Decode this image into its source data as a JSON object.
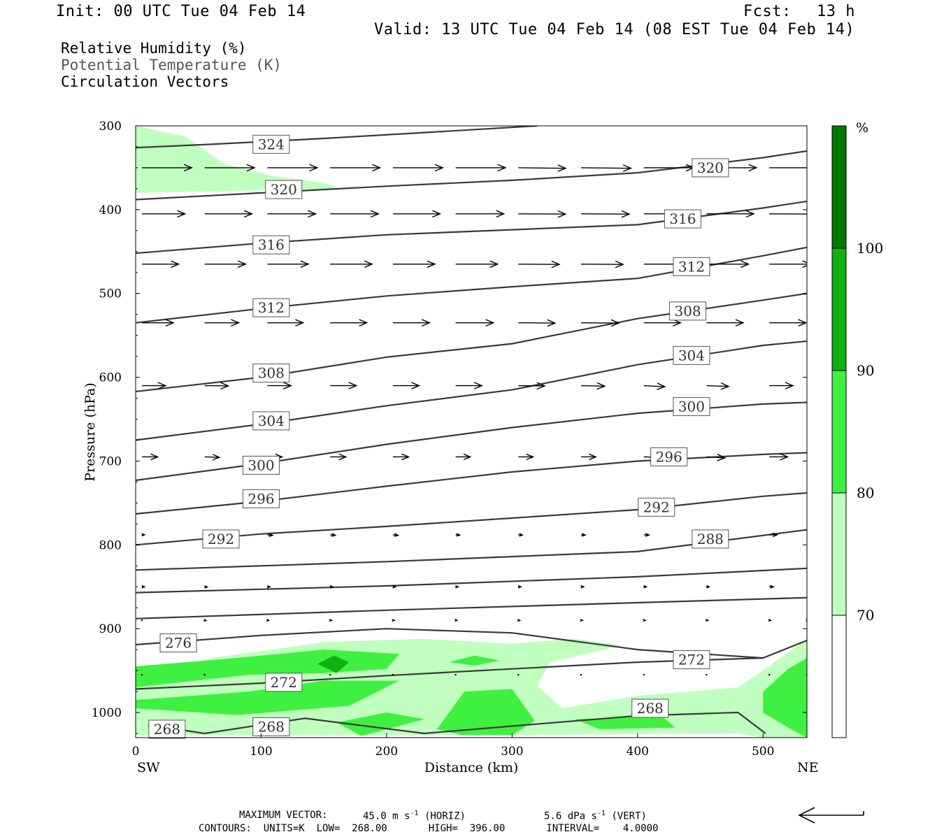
{
  "header": {
    "init": "Init: 00 UTC Tue 04 Feb 14",
    "fcst_label": "Fcst:",
    "fcst_value": "13 h",
    "valid": "Valid: 13 UTC Tue 04 Feb 14 (08 EST Tue 04 Feb 14)"
  },
  "legend": {
    "line1": "Relative Humidity (%)",
    "line2": "Potential Temperature (K)",
    "line3": "Circulation Vectors"
  },
  "footer": {
    "maxvec_label": "MAXIMUM VECTOR:",
    "horiz_value": "45.0",
    "horiz_unit": "m s",
    "horiz_exp": "-1",
    "horiz_tag": "(HORIZ)",
    "vert_value": "5.6",
    "vert_unit": "dPa s",
    "vert_exp": "-1",
    "vert_tag": "(VERT)",
    "contours": "CONTOURS:  UNITS=K  LOW=  268.00       HIGH=  396.00       INTERVAL=    4.0000"
  },
  "chart_data": {
    "type": "cross-section",
    "xlabel": "Distance (km)",
    "ylabel": "Pressure (hPa)",
    "xlim": [
      0,
      535
    ],
    "ylim": [
      300,
      1030
    ],
    "x_ticks": [
      0,
      100,
      200,
      300,
      400,
      500
    ],
    "y_ticks": [
      300,
      400,
      500,
      600,
      700,
      800,
      900,
      1000
    ],
    "x_end_labels": {
      "left": "SW",
      "right": "NE"
    },
    "colorbar": {
      "unit": "%",
      "levels": [
        70,
        80,
        90,
        100
      ],
      "colors": [
        "#ffffff",
        "#c0ffc0",
        "#40f040",
        "#10b010",
        "#007a00"
      ]
    },
    "theta_contours": [
      {
        "value": 324,
        "points": [
          [
            0,
            326
          ],
          [
            60,
            322
          ],
          [
            150,
            315
          ],
          [
            230,
            308
          ],
          [
            320,
            300
          ]
        ],
        "labels": [
          [
            108,
            322
          ]
        ]
      },
      {
        "value": 320,
        "points": [
          [
            0,
            388
          ],
          [
            100,
            380
          ],
          [
            200,
            372
          ],
          [
            300,
            365
          ],
          [
            400,
            356
          ],
          [
            500,
            338
          ],
          [
            535,
            330
          ]
        ],
        "labels": [
          [
            118,
            376
          ],
          [
            458,
            350
          ]
        ]
      },
      {
        "value": 316,
        "points": [
          [
            0,
            452
          ],
          [
            100,
            440
          ],
          [
            200,
            430
          ],
          [
            300,
            424
          ],
          [
            400,
            418
          ],
          [
            500,
            398
          ],
          [
            535,
            390
          ]
        ],
        "labels": [
          [
            108,
            442
          ],
          [
            436,
            411
          ]
        ]
      },
      {
        "value": 312,
        "points": [
          [
            0,
            535
          ],
          [
            100,
            518
          ],
          [
            200,
            503
          ],
          [
            300,
            492
          ],
          [
            400,
            482
          ],
          [
            500,
            455
          ],
          [
            535,
            445
          ]
        ],
        "labels": [
          [
            108,
            517
          ],
          [
            443,
            468
          ]
        ]
      },
      {
        "value": 308,
        "points": [
          [
            0,
            617
          ],
          [
            100,
            600
          ],
          [
            200,
            576
          ],
          [
            300,
            560
          ],
          [
            400,
            530
          ],
          [
            500,
            508
          ],
          [
            535,
            500
          ]
        ],
        "labels": [
          [
            108,
            595
          ],
          [
            440,
            521
          ]
        ]
      },
      {
        "value": 304,
        "points": [
          [
            0,
            675
          ],
          [
            100,
            656
          ],
          [
            200,
            634
          ],
          [
            300,
            615
          ],
          [
            400,
            585
          ],
          [
            500,
            562
          ],
          [
            535,
            557
          ]
        ],
        "labels": [
          [
            108,
            652
          ],
          [
            443,
            574
          ]
        ]
      },
      {
        "value": 300,
        "points": [
          [
            0,
            723
          ],
          [
            100,
            703
          ],
          [
            200,
            680
          ],
          [
            300,
            660
          ],
          [
            400,
            643
          ],
          [
            500,
            632
          ],
          [
            535,
            630
          ]
        ],
        "labels": [
          [
            100,
            705
          ],
          [
            443,
            635
          ]
        ]
      },
      {
        "value": 296,
        "points": [
          [
            0,
            763
          ],
          [
            100,
            748
          ],
          [
            200,
            730
          ],
          [
            300,
            713
          ],
          [
            400,
            700
          ],
          [
            500,
            692
          ],
          [
            535,
            690
          ]
        ],
        "labels": [
          [
            100,
            745
          ],
          [
            425,
            695
          ]
        ]
      },
      {
        "value": 292,
        "points": [
          [
            0,
            800
          ],
          [
            100,
            787
          ],
          [
            200,
            778
          ],
          [
            300,
            768
          ],
          [
            400,
            758
          ],
          [
            500,
            742
          ],
          [
            535,
            738
          ]
        ],
        "labels": [
          [
            68,
            793
          ],
          [
            415,
            755
          ]
        ]
      },
      {
        "value": 288,
        "points": [
          [
            0,
            830
          ],
          [
            200,
            820
          ],
          [
            400,
            808
          ],
          [
            535,
            782
          ]
        ],
        "labels": [
          [
            458,
            793
          ]
        ]
      },
      {
        "value": 284,
        "points": [
          [
            0,
            857
          ],
          [
            200,
            849
          ],
          [
            400,
            838
          ],
          [
            535,
            828
          ]
        ],
        "labels": []
      },
      {
        "value": 280,
        "points": [
          [
            0,
            888
          ],
          [
            200,
            878
          ],
          [
            400,
            869
          ],
          [
            535,
            863
          ]
        ],
        "labels": []
      },
      {
        "value": 276,
        "points": [
          [
            0,
            919
          ],
          [
            100,
            908
          ],
          [
            200,
            900
          ],
          [
            300,
            905
          ],
          [
            400,
            925
          ],
          [
            500,
            935
          ],
          [
            535,
            914
          ]
        ],
        "labels": [
          [
            34,
            917
          ]
        ]
      },
      {
        "value": 272,
        "points": [
          [
            0,
            972
          ],
          [
            100,
            965
          ],
          [
            200,
            956
          ],
          [
            300,
            948
          ],
          [
            400,
            940
          ],
          [
            500,
            935
          ]
        ],
        "labels": [
          [
            118,
            964
          ],
          [
            443,
            937
          ]
        ]
      },
      {
        "value": 268,
        "points": [
          [
            10,
            1015
          ],
          [
            55,
            1025
          ],
          [
            90,
            1017
          ],
          [
            135,
            1007
          ],
          [
            230,
            1025
          ],
          [
            310,
            1015
          ],
          [
            400,
            1004
          ],
          [
            480,
            1000
          ],
          [
            502,
            1025
          ]
        ],
        "labels": [
          [
            25,
            1020
          ],
          [
            108,
            1017
          ],
          [
            410,
            995
          ]
        ]
      }
    ],
    "rh_regions": [
      {
        "level": 70,
        "points": [
          [
            0,
            300
          ],
          [
            40,
            313
          ],
          [
            70,
            345
          ],
          [
            110,
            360
          ],
          [
            150,
            368
          ],
          [
            163,
            375
          ],
          [
            0,
            380
          ]
        ]
      },
      {
        "level": 70,
        "points": [
          [
            0,
            960
          ],
          [
            60,
            935
          ],
          [
            150,
            916
          ],
          [
            230,
            912
          ],
          [
            300,
            918
          ],
          [
            350,
            912
          ],
          [
            388,
            920
          ],
          [
            330,
            940
          ],
          [
            320,
            968
          ],
          [
            340,
            995
          ],
          [
            400,
            980
          ],
          [
            480,
            970
          ],
          [
            500,
            950
          ],
          [
            535,
            912
          ],
          [
            535,
            1030
          ],
          [
            500,
            1030
          ],
          [
            480,
            1025
          ],
          [
            300,
            1027
          ],
          [
            0,
            1027
          ]
        ]
      },
      {
        "level": 80,
        "points": [
          [
            0,
            945
          ],
          [
            80,
            935
          ],
          [
            150,
            925
          ],
          [
            210,
            930
          ],
          [
            200,
            948
          ],
          [
            150,
            953
          ],
          [
            90,
            955
          ],
          [
            0,
            970
          ]
        ]
      },
      {
        "level": 80,
        "points": [
          [
            0,
            985
          ],
          [
            90,
            975
          ],
          [
            150,
            962
          ],
          [
            210,
            962
          ],
          [
            170,
            992
          ],
          [
            80,
            1003
          ],
          [
            0,
            995
          ]
        ]
      },
      {
        "level": 80,
        "points": [
          [
            160,
            1012
          ],
          [
            200,
            1000
          ],
          [
            230,
            1008
          ],
          [
            180,
            1028
          ]
        ]
      },
      {
        "level": 80,
        "points": [
          [
            240,
            1020
          ],
          [
            262,
            975
          ],
          [
            300,
            972
          ],
          [
            318,
            1010
          ],
          [
            300,
            1027
          ],
          [
            260,
            1027
          ]
        ]
      },
      {
        "level": 80,
        "points": [
          [
            250,
            940
          ],
          [
            270,
            932
          ],
          [
            290,
            938
          ],
          [
            270,
            944
          ]
        ]
      },
      {
        "level": 80,
        "points": [
          [
            500,
            975
          ],
          [
            520,
            948
          ],
          [
            535,
            935
          ],
          [
            535,
            1030
          ],
          [
            520,
            1018
          ],
          [
            500,
            1000
          ]
        ]
      },
      {
        "level": 80,
        "points": [
          [
            350,
            1008
          ],
          [
            420,
            1005
          ],
          [
            430,
            1018
          ],
          [
            370,
            1020
          ]
        ]
      },
      {
        "level": 90,
        "points": [
          [
            145,
            942
          ],
          [
            158,
            932
          ],
          [
            170,
            940
          ],
          [
            160,
            953
          ]
        ]
      }
    ],
    "vectors": {
      "rows": [
        {
          "p": 350,
          "u": [
            0.95,
            0.95,
            0.95,
            0.95,
            0.95,
            0.95,
            0.9,
            0.95,
            0.95,
            0.95,
            0.95,
            0.95
          ],
          "w": [
            0,
            0,
            0,
            0,
            0,
            0,
            0.1,
            0.1,
            0,
            0,
            0,
            0
          ]
        },
        {
          "p": 405,
          "u": [
            0.82,
            0.9,
            0.92,
            0.92,
            0.9,
            0.92,
            0.9,
            0.92,
            0.9,
            0.9,
            0.88,
            0.85
          ],
          "w": [
            0,
            0,
            0,
            0,
            0,
            0,
            0.05,
            0.05,
            0,
            0,
            0.05,
            0.05
          ]
        },
        {
          "p": 465,
          "u": [
            0.7,
            0.78,
            0.78,
            0.8,
            0.8,
            0.8,
            0.78,
            0.8,
            0.8,
            0.8,
            0.78,
            0.75
          ],
          "w": [
            0,
            0,
            0,
            0,
            0,
            0,
            0.05,
            0.05,
            0,
            0,
            0,
            0
          ]
        },
        {
          "p": 535,
          "u": [
            0.6,
            0.65,
            0.68,
            0.7,
            0.7,
            0.72,
            0.7,
            0.72,
            0.7,
            0.7,
            0.7,
            0.68
          ],
          "w": [
            0,
            0,
            0,
            0,
            0,
            0,
            0.05,
            0.05,
            0,
            0,
            0,
            0
          ]
        },
        {
          "p": 610,
          "u": [
            0.45,
            0.45,
            0.45,
            0.5,
            0.5,
            0.5,
            0.5,
            0.45,
            0.4,
            0.42,
            0.45,
            0.45
          ],
          "w": [
            0,
            0.05,
            0,
            0,
            0,
            0,
            0.05,
            0.1,
            0.2,
            0.15,
            0,
            0
          ]
        },
        {
          "p": 695,
          "u": [
            0.3,
            0.28,
            0.28,
            0.3,
            0.3,
            0.28,
            0.28,
            0.28,
            0.3,
            0.35,
            0.35,
            0.3
          ],
          "w": [
            0,
            0.1,
            0,
            0,
            0,
            0,
            0,
            0,
            0.1,
            0.2,
            0,
            0
          ]
        },
        {
          "p": 788,
          "u": [
            0.05,
            0.12,
            0.1,
            0.1,
            0.1,
            0.08,
            0.08,
            0.08,
            0.1,
            0.1,
            0.15,
            0.1
          ],
          "w": [
            0,
            0.2,
            0.1,
            0.1,
            0.1,
            0.05,
            0.05,
            0.05,
            0.05,
            0.2,
            0,
            0
          ]
        },
        {
          "p": 850,
          "u": [
            0.05,
            0.05,
            0.05,
            0.05,
            0.05,
            0.05,
            0.05,
            0.05,
            0.05,
            0.05,
            0.08,
            0.05
          ],
          "w": [
            0,
            0.05,
            0,
            0,
            0,
            0,
            0,
            0,
            0,
            0,
            0,
            0
          ]
        },
        {
          "p": 890,
          "u": [
            0,
            0.03,
            0.03,
            0.03,
            0.03,
            0.03,
            0.03,
            0.03,
            0.03,
            0.03,
            0.03,
            0.03
          ],
          "w": [
            0,
            0.05,
            0,
            0,
            0,
            0,
            0,
            0,
            0,
            0,
            0,
            0
          ]
        },
        {
          "p": 955,
          "u": [
            0,
            0,
            0.02,
            0.02,
            0.02,
            0.02,
            0.02,
            0.02,
            0.02,
            0.02,
            0.02,
            0.02
          ],
          "w": [
            0,
            0,
            0,
            0,
            0,
            0,
            0,
            0,
            0,
            0,
            0,
            0
          ]
        }
      ],
      "x": [
        5,
        55,
        105,
        155,
        205,
        255,
        305,
        355,
        405,
        455,
        505,
        535
      ]
    },
    "reference_vector": {
      "direction": "left",
      "label": "45.0 m s-1"
    }
  }
}
